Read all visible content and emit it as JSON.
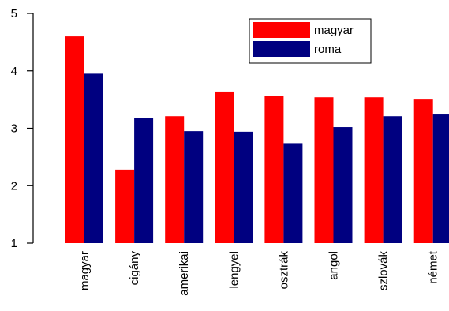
{
  "chart_data": {
    "type": "bar",
    "categories": [
      "magyar",
      "cigány",
      "amerikai",
      "lengyel",
      "osztrák",
      "angol",
      "szlovák",
      "német"
    ],
    "series": [
      {
        "name": "magyar",
        "color": "#ff0000",
        "values": [
          4.6,
          2.28,
          3.21,
          3.64,
          3.57,
          3.54,
          3.54,
          3.5
        ]
      },
      {
        "name": "roma",
        "color": "#000080",
        "values": [
          3.95,
          3.18,
          2.95,
          2.94,
          2.74,
          3.02,
          3.21,
          3.24
        ]
      }
    ],
    "ylim": [
      1,
      5
    ],
    "yticks": [
      1,
      2,
      3,
      4,
      5
    ],
    "legend_position": "top-right",
    "grid": false
  }
}
